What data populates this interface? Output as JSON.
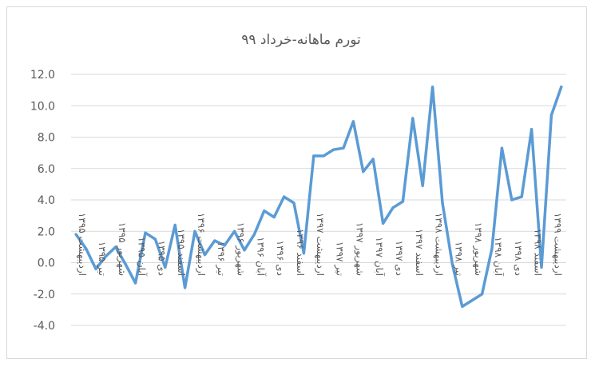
{
  "chart_data": {
    "type": "line",
    "title": "تورم ماهانه-خرداد ۹۹",
    "xlabel": "",
    "ylabel": "",
    "ylim": [
      -4,
      12
    ],
    "yticks": [
      "12.0",
      "10.0",
      "8.0",
      "6.0",
      "4.0",
      "2.0",
      "0.0",
      "-2.0",
      "-4.0"
    ],
    "ytick_values": [
      12,
      10,
      8,
      6,
      4,
      2,
      0,
      -2,
      -4
    ],
    "grid": true,
    "legend": "none",
    "line_color": "#5b9bd5",
    "categories": [
      "اردیبهشت ۱۳۹۵",
      "",
      "تیر ۱۳۹۵",
      "",
      "شهریور ۱۳۹۵",
      "",
      "آبان ۱۳۹۵",
      "",
      "دی ۱۳۹۵",
      "",
      "اسفند ۱۳۹۵",
      "",
      "اردیبهشت ۱۳۹۶",
      "",
      "تیر ۱۳۹۶",
      "",
      "شهریور ۱۳۹۶",
      "",
      "آبان ۱۳۹۶",
      "",
      "دی ۱۳۹۶",
      "",
      "اسفند ۱۳۹۶",
      "",
      "اردیبهشت ۱۳۹۷",
      "",
      "تیر ۱۳۹۷",
      "",
      "شهریور ۱۳۹۷",
      "",
      "آبان ۱۳۹۷",
      "",
      "دی ۱۳۹۷",
      "",
      "اسفند ۱۳۹۷",
      "",
      "اردیبهشت ۱۳۹۸",
      "",
      "تیر ۱۳۹۸",
      "",
      "شهریور ۱۳۹۸",
      "",
      "آبان ۱۳۹۸",
      "",
      "دی ۱۳۹۸",
      "",
      "اسفند ۱۳۹۸",
      "",
      "اردیبهشت ۱۳۹۹",
      ""
    ],
    "series": [
      {
        "values": [
          1.8,
          0.9,
          -0.4,
          0.4,
          1.0,
          -0.1,
          -1.3,
          1.9,
          1.5,
          -0.3,
          2.4,
          -1.6,
          2.0,
          0.5,
          1.4,
          1.1,
          2.0,
          0.8,
          1.8,
          3.3,
          2.9,
          4.2,
          3.8,
          0.6,
          6.8,
          6.8,
          7.2,
          7.3,
          9.0,
          5.8,
          6.6,
          2.5,
          3.5,
          3.9,
          9.2,
          4.9,
          11.2,
          3.8,
          -0.1,
          -2.8,
          -2.4,
          -2.0,
          0.9,
          7.3,
          4.0,
          4.2,
          8.5,
          -0.3,
          9.4,
          11.2
        ]
      }
    ]
  }
}
